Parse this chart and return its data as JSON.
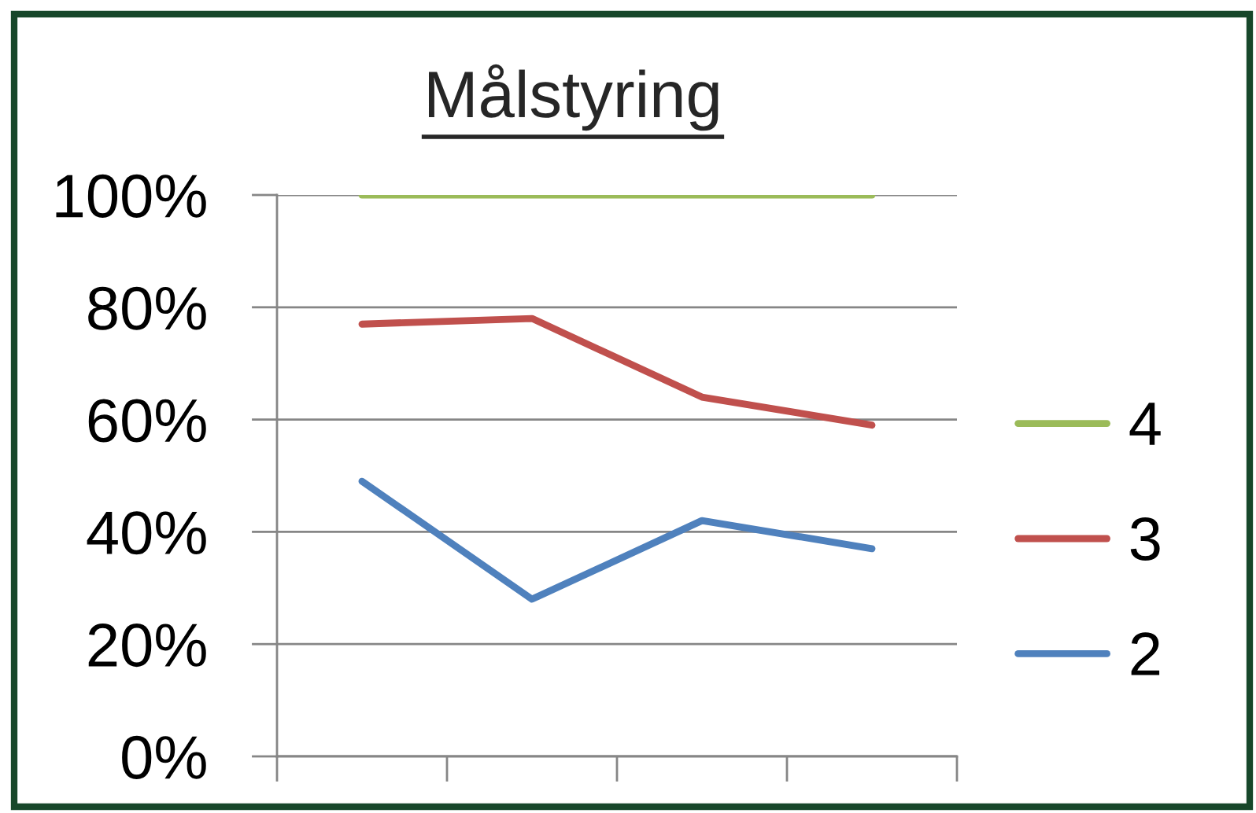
{
  "chart_data": {
    "type": "line",
    "title": "Målstyring",
    "categories": [
      null,
      null,
      null,
      null
    ],
    "series": [
      {
        "name": "4",
        "color": "#9bbb59",
        "values": [
          100,
          100,
          100,
          100
        ]
      },
      {
        "name": "3",
        "color": "#c0504d",
        "values": [
          77,
          78,
          64,
          59
        ]
      },
      {
        "name": "2",
        "color": "#4f81bd",
        "values": [
          49,
          28,
          42,
          37
        ]
      }
    ],
    "ylim": [
      0,
      100
    ],
    "yticks": [
      {
        "value": 0,
        "label": "0%"
      },
      {
        "value": 20,
        "label": "20%"
      },
      {
        "value": 40,
        "label": "40%"
      },
      {
        "value": 60,
        "label": "60%"
      },
      {
        "value": 80,
        "label": "80%"
      },
      {
        "value": 100,
        "label": "100%"
      }
    ],
    "grid": "y",
    "legend": "right",
    "marker": "none",
    "line_style": "solid"
  }
}
